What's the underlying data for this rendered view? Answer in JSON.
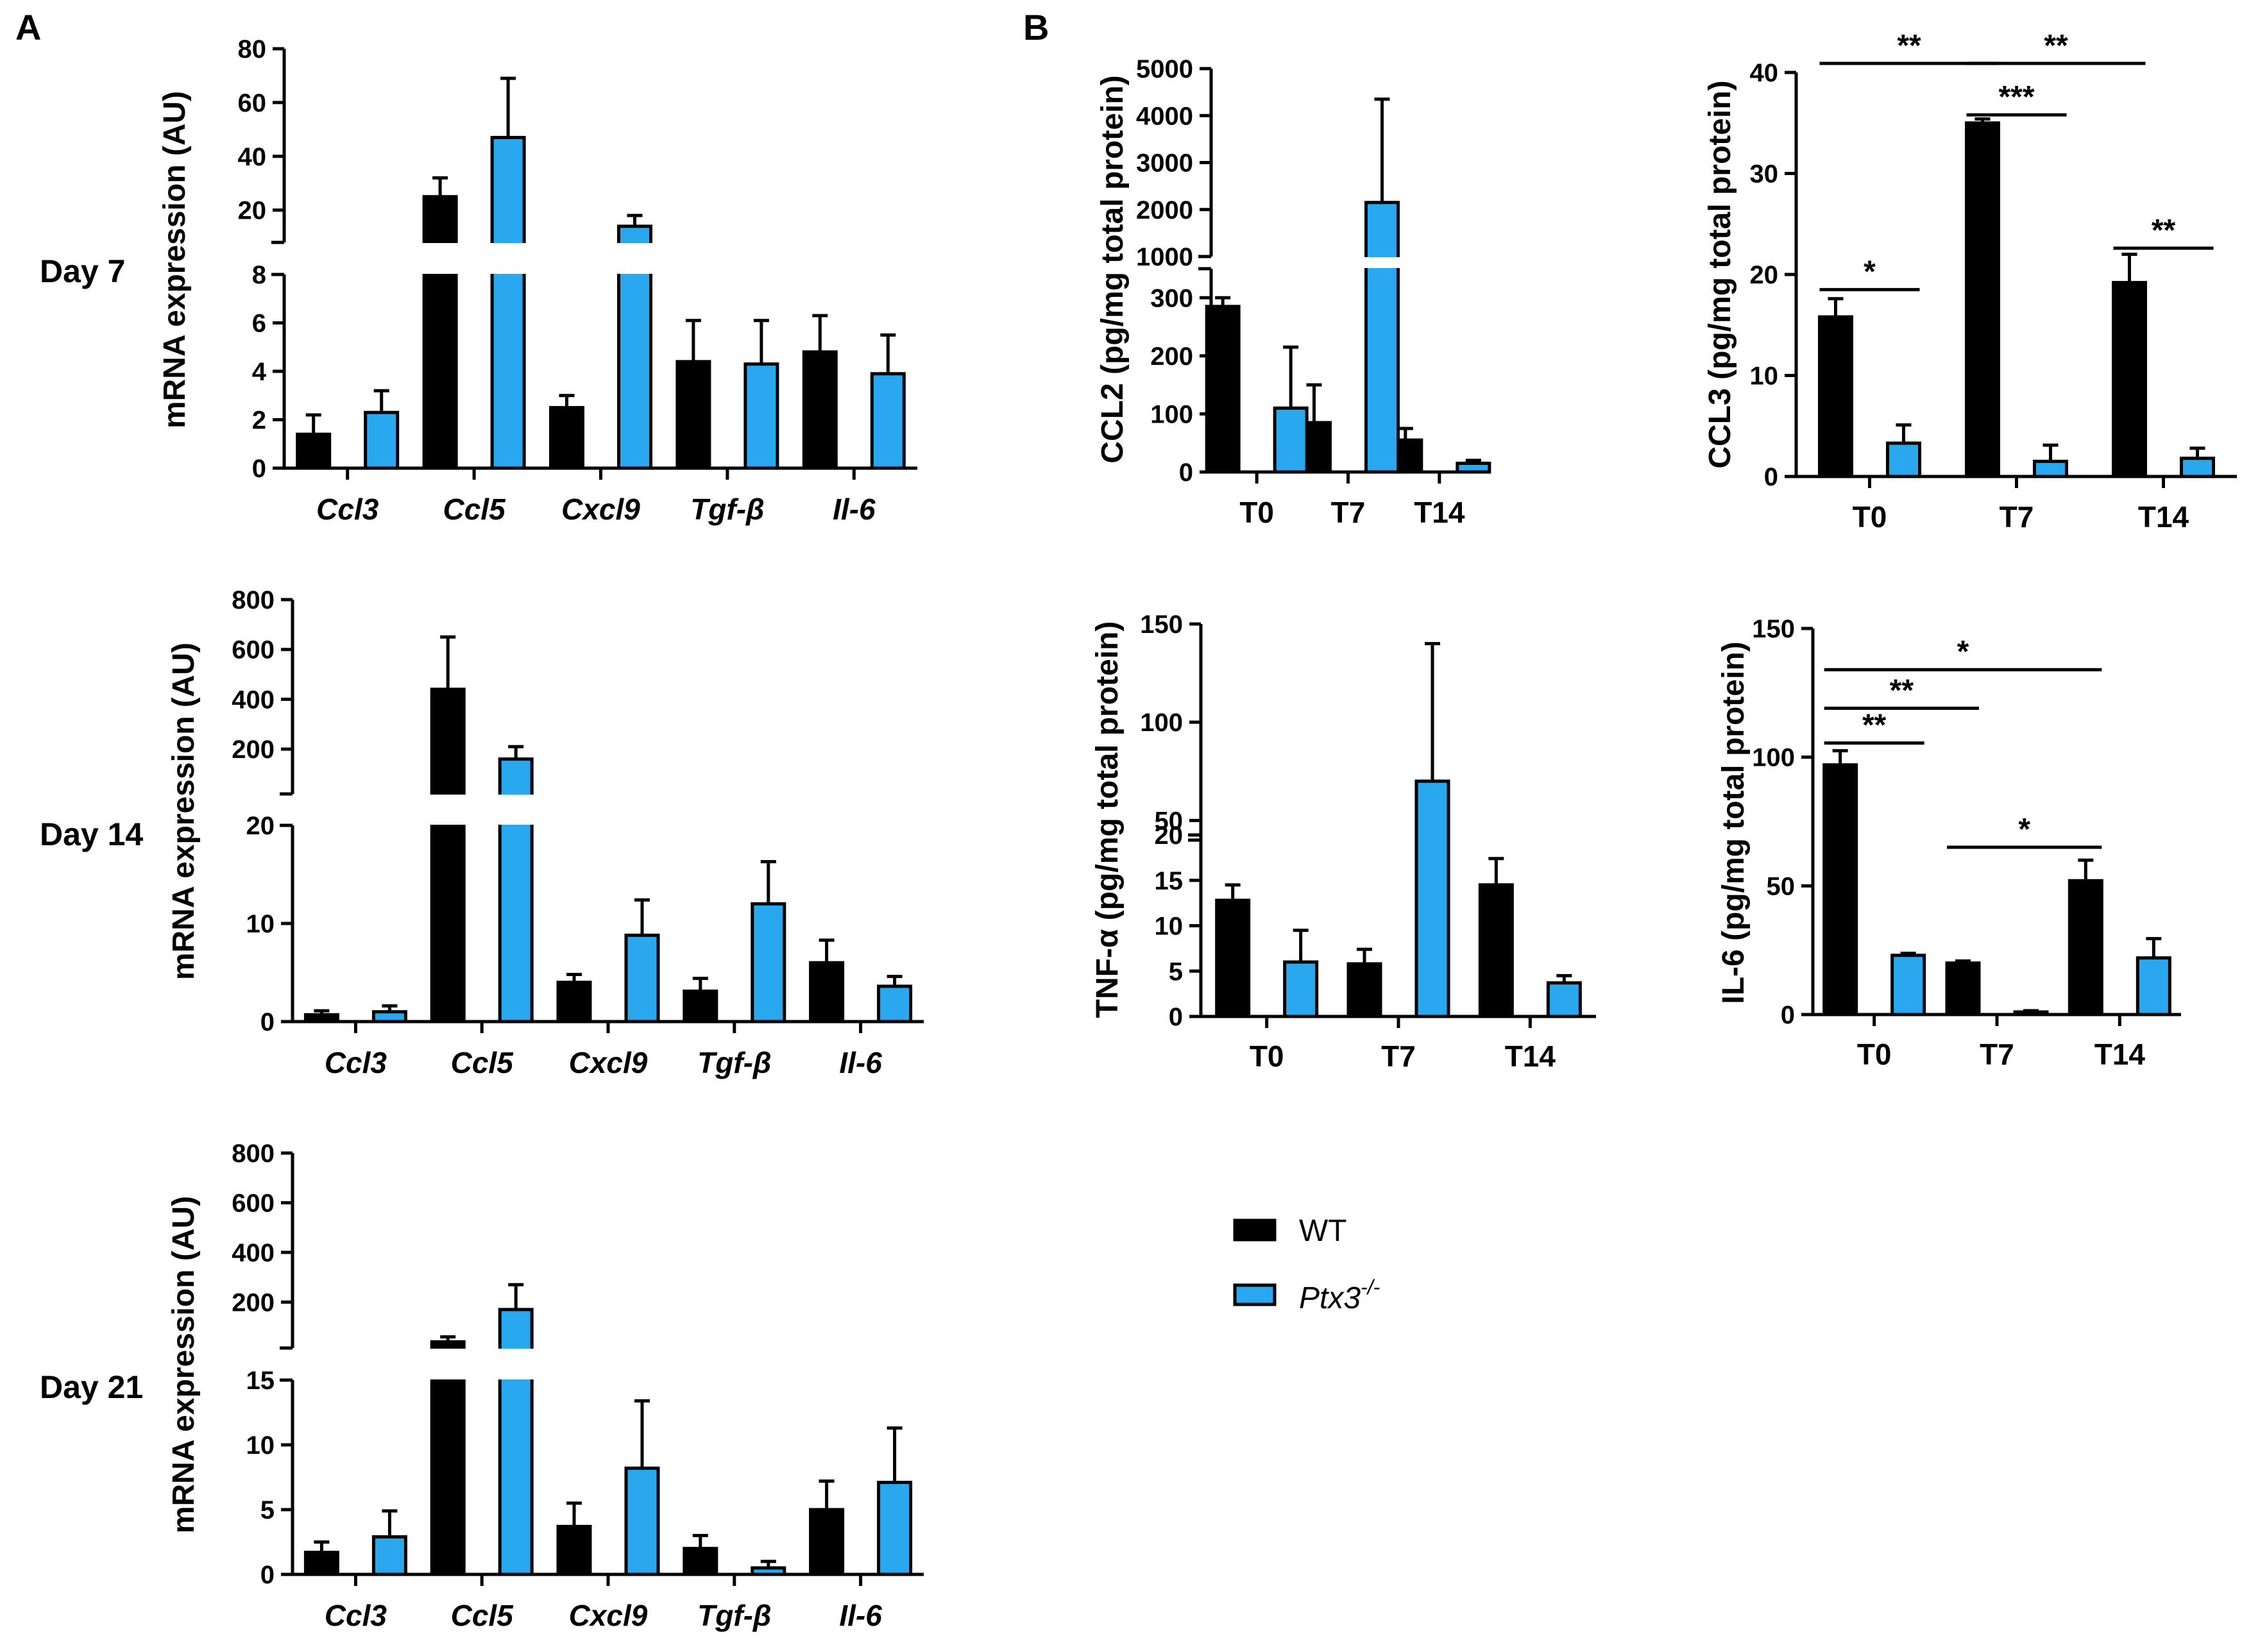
{
  "panels": {
    "a": "A",
    "b": "B"
  },
  "row_labels": [
    "Day 7",
    "Day 14",
    "Day 21"
  ],
  "legend": {
    "wt": "WT",
    "ko": "Ptx3",
    "ko_sup": "-/-"
  },
  "colors": {
    "wt": "#000000",
    "ko": "#29A8F0"
  },
  "chart_data": [
    {
      "type": "bar",
      "id": "day7",
      "title": "Day 7",
      "ylabel": "mRNA expression (AU)",
      "categories": [
        "Ccl3",
        "Ccl5",
        "Cxcl9",
        "Tgf-β",
        "Il-6"
      ],
      "series": [
        {
          "name": "WT",
          "values": [
            1.4,
            25,
            2.5,
            4.4,
            4.8
          ],
          "errors": [
            0.8,
            7,
            0.5,
            1.7,
            1.5
          ]
        },
        {
          "name": "Ptx3-/-",
          "values": [
            2.3,
            47,
            14,
            4.3,
            3.9
          ],
          "errors": [
            0.9,
            22,
            4,
            1.8,
            1.6
          ]
        }
      ],
      "y_lower_range": [
        0,
        8
      ],
      "y_upper_range": [
        8,
        80
      ],
      "y_lower_ticks": [
        0,
        2,
        4,
        6,
        8
      ],
      "y_upper_ticks": [
        20,
        40,
        60,
        80
      ]
    },
    {
      "type": "bar",
      "id": "day14",
      "title": "Day 14",
      "ylabel": "mRNA expression (AU)",
      "categories": [
        "Ccl3",
        "Ccl5",
        "Cxcl9",
        "Tgf-β",
        "Il-6"
      ],
      "series": [
        {
          "name": "WT",
          "values": [
            0.7,
            440,
            4,
            3.1,
            6
          ],
          "errors": [
            0.4,
            210,
            0.8,
            1.3,
            2.3
          ]
        },
        {
          "name": "Ptx3-/-",
          "values": [
            1,
            160,
            8.8,
            12,
            3.6
          ],
          "errors": [
            0.6,
            50,
            3.6,
            4.3,
            1
          ]
        }
      ],
      "y_lower_range": [
        0,
        20
      ],
      "y_upper_range": [
        20,
        800
      ],
      "y_lower_ticks": [
        0,
        10,
        20
      ],
      "y_upper_ticks": [
        200,
        400,
        600,
        800
      ]
    },
    {
      "type": "bar",
      "id": "day21",
      "title": "Day 21",
      "ylabel": "mRNA expression (AU)",
      "categories": [
        "Ccl3",
        "Ccl5",
        "Cxcl9",
        "Tgf-β",
        "Il-6"
      ],
      "series": [
        {
          "name": "WT",
          "values": [
            1.7,
            40,
            3.7,
            2,
            5
          ],
          "errors": [
            0.8,
            20,
            1.8,
            1,
            2.2
          ]
        },
        {
          "name": "Ptx3-/-",
          "values": [
            2.9,
            170,
            8.2,
            0.5,
            7.1
          ],
          "errors": [
            2,
            100,
            5.2,
            0.5,
            4.2
          ]
        }
      ],
      "y_lower_range": [
        0,
        15
      ],
      "y_upper_range": [
        15,
        800
      ],
      "y_lower_ticks": [
        0,
        5,
        10,
        15
      ],
      "y_upper_ticks": [
        200,
        400,
        600,
        800
      ]
    },
    {
      "type": "bar",
      "id": "ccl2",
      "ylabel": "CCL2 (pg/mg total protein)",
      "categories": [
        "T0",
        "T7",
        "T14"
      ],
      "series": [
        {
          "name": "WT",
          "values": [
            285,
            85,
            55
          ],
          "errors": [
            15,
            65,
            20
          ]
        },
        {
          "name": "Ptx3-/-",
          "values": [
            110,
            2150,
            15
          ],
          "errors": [
            105,
            2200,
            5
          ]
        }
      ],
      "y_lower_range": [
        0,
        350
      ],
      "y_upper_range": [
        1000,
        5000
      ],
      "y_lower_ticks": [
        0,
        100,
        200,
        300
      ],
      "y_upper_ticks": [
        1000,
        2000,
        3000,
        4000,
        5000
      ]
    },
    {
      "type": "bar",
      "id": "ccl3",
      "ylabel": "CCL3 (pg/mg total protein)",
      "categories": [
        "T0",
        "T7",
        "T14"
      ],
      "series": [
        {
          "name": "WT",
          "values": [
            15.8,
            35,
            19.2
          ],
          "errors": [
            1.8,
            0.4,
            2.8
          ]
        },
        {
          "name": "Ptx3-/-",
          "values": [
            3.3,
            1.5,
            1.8
          ],
          "errors": [
            1.8,
            1.6,
            1
          ]
        }
      ],
      "ylim": [
        0,
        40
      ],
      "y_ticks": [
        0,
        10,
        20,
        30,
        40
      ],
      "annotations": [
        {
          "label": "*",
          "from": [
            0,
            0
          ],
          "to": [
            0,
            1
          ],
          "y": 18.5
        },
        {
          "label": "***",
          "from": [
            1,
            0
          ],
          "to": [
            1,
            1
          ],
          "y": 35.8
        },
        {
          "label": "**",
          "from": [
            2,
            0
          ],
          "to": [
            2,
            1
          ],
          "y": 22.6
        },
        {
          "label": "**",
          "from": [
            0,
            0
          ],
          "to": [
            1,
            0
          ],
          "y": 40.9
        },
        {
          "label": "**",
          "from": [
            1,
            0
          ],
          "to": [
            2,
            0
          ],
          "y": 40.9
        }
      ]
    },
    {
      "type": "bar",
      "id": "tnfa",
      "ylabel": "TNF-α  (pg/mg total protein)",
      "categories": [
        "T0",
        "T7",
        "T14"
      ],
      "series": [
        {
          "name": "WT",
          "values": [
            12.8,
            5.8,
            14.5
          ],
          "errors": [
            1.7,
            1.6,
            2.9
          ]
        },
        {
          "name": "Ptx3-/-",
          "values": [
            6,
            70,
            3.7
          ],
          "errors": [
            3.5,
            70,
            0.8
          ]
        }
      ],
      "y_lower_range": [
        0,
        20
      ],
      "y_upper_range": [
        40,
        150
      ],
      "y_lower_ticks": [
        0,
        5,
        10,
        15,
        20
      ],
      "y_upper_ticks": [
        50,
        100,
        150
      ]
    },
    {
      "type": "bar",
      "id": "il6",
      "ylabel": "IL-6 (pg/mg total protein)",
      "categories": [
        "T0",
        "T7",
        "T14"
      ],
      "series": [
        {
          "name": "WT",
          "values": [
            97,
            20,
            52
          ],
          "errors": [
            5.5,
            0.8,
            8
          ]
        },
        {
          "name": "Ptx3-/-",
          "values": [
            23,
            1,
            22
          ],
          "errors": [
            0.8,
            0.5,
            7.5
          ]
        }
      ],
      "ylim": [
        0,
        150
      ],
      "y_ticks": [
        0,
        50,
        100,
        150
      ],
      "annotations": [
        {
          "label": "**",
          "from": [
            0,
            0
          ],
          "to": [
            0,
            1
          ],
          "y": 105.5
        },
        {
          "label": "**",
          "from": [
            0,
            0
          ],
          "to": [
            1,
            0
          ],
          "y": 119
        },
        {
          "label": "*",
          "from": [
            0,
            0
          ],
          "to": [
            2,
            0
          ],
          "y": 134
        },
        {
          "label": "*",
          "from": [
            1,
            0
          ],
          "to": [
            2,
            0
          ],
          "y": 65
        }
      ]
    }
  ]
}
